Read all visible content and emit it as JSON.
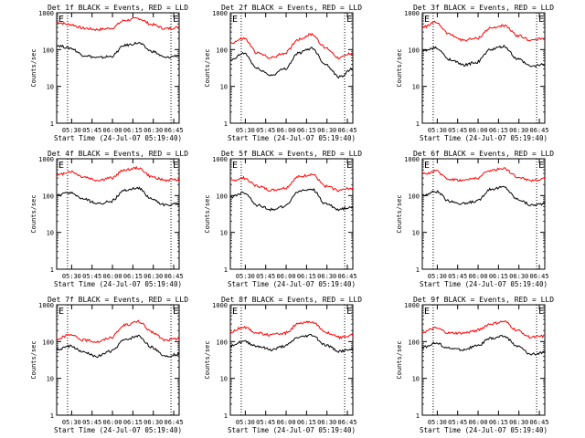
{
  "figure": {
    "ylabel": "Counts/sec",
    "xlabel": "Start Time (24-Jul-07 05:19:40)",
    "xticks": [
      "05:30",
      "05:45",
      "06:00",
      "06:15",
      "06:30",
      "06:45"
    ],
    "yticks": [
      "1",
      "10",
      "100",
      "1000"
    ],
    "marker_left": "E",
    "marker_right": "E",
    "colors": {
      "events": "#000000",
      "lld": "#ff0000",
      "axes": "#000000"
    }
  },
  "chart_data": [
    {
      "type": "line",
      "title": "Det 1f BLACK = Events, RED = LLD",
      "x_minutes": [
        0,
        10,
        20,
        30,
        40,
        50,
        60,
        70,
        80,
        90
      ],
      "series": [
        {
          "name": "LLD",
          "values": [
            550,
            480,
            380,
            350,
            380,
            620,
            700,
            480,
            370,
            400
          ]
        },
        {
          "name": "Events",
          "values": [
            130,
            110,
            70,
            60,
            65,
            130,
            150,
            90,
            60,
            70
          ]
        }
      ],
      "ylim": [
        1,
        1000
      ],
      "yscale": "log",
      "markers_minutes": [
        8,
        84
      ]
    },
    {
      "type": "line",
      "title": "Det 2f BLACK = Events, RED = LLD",
      "x_minutes": [
        0,
        10,
        20,
        30,
        40,
        50,
        60,
        70,
        80,
        90
      ],
      "series": [
        {
          "name": "LLD",
          "values": [
            150,
            200,
            80,
            60,
            80,
            190,
            260,
            110,
            60,
            80
          ]
        },
        {
          "name": "Events",
          "values": [
            50,
            80,
            30,
            20,
            30,
            80,
            110,
            40,
            18,
            30
          ]
        }
      ],
      "ylim": [
        1,
        1000
      ],
      "yscale": "log",
      "markers_minutes": [
        8,
        84
      ]
    },
    {
      "type": "line",
      "title": "Det 3f BLACK = Events, RED = LLD",
      "x_minutes": [
        0,
        10,
        20,
        30,
        40,
        50,
        60,
        70,
        80,
        90
      ],
      "series": [
        {
          "name": "LLD",
          "values": [
            400,
            550,
            260,
            180,
            200,
            380,
            450,
            240,
            180,
            200
          ]
        },
        {
          "name": "Events",
          "values": [
            90,
            110,
            55,
            38,
            45,
            100,
            120,
            55,
            35,
            40
          ]
        }
      ],
      "ylim": [
        1,
        1000
      ],
      "yscale": "log",
      "markers_minutes": [
        8,
        84
      ]
    },
    {
      "type": "line",
      "title": "Det 4f BLACK = Events, RED = LLD",
      "x_minutes": [
        0,
        10,
        20,
        30,
        40,
        50,
        60,
        70,
        80,
        90
      ],
      "series": [
        {
          "name": "LLD",
          "values": [
            350,
            450,
            320,
            260,
            300,
            500,
            560,
            320,
            260,
            280
          ]
        },
        {
          "name": "Events",
          "values": [
            100,
            120,
            80,
            60,
            70,
            140,
            160,
            80,
            55,
            60
          ]
        }
      ],
      "ylim": [
        1,
        1000
      ],
      "yscale": "log",
      "markers_minutes": [
        8,
        84
      ]
    },
    {
      "type": "line",
      "title": "Det 5f BLACK = Events, RED = LLD",
      "x_minutes": [
        0,
        10,
        20,
        30,
        40,
        50,
        60,
        70,
        80,
        90
      ],
      "series": [
        {
          "name": "LLD",
          "values": [
            250,
            300,
            180,
            140,
            160,
            320,
            380,
            180,
            140,
            160
          ]
        },
        {
          "name": "Events",
          "values": [
            90,
            120,
            55,
            42,
            50,
            130,
            150,
            60,
            42,
            50
          ]
        }
      ],
      "ylim": [
        1,
        1000
      ],
      "yscale": "log",
      "markers_minutes": [
        8,
        84
      ]
    },
    {
      "type": "line",
      "title": "Det 6f BLACK = Events, RED = LLD",
      "x_minutes": [
        0,
        10,
        20,
        30,
        40,
        50,
        60,
        70,
        80,
        90
      ],
      "series": [
        {
          "name": "LLD",
          "values": [
            380,
            460,
            280,
            260,
            300,
            480,
            550,
            320,
            260,
            280
          ]
        },
        {
          "name": "Events",
          "values": [
            100,
            130,
            70,
            60,
            70,
            150,
            170,
            80,
            55,
            60
          ]
        }
      ],
      "ylim": [
        1,
        1000
      ],
      "yscale": "log",
      "markers_minutes": [
        8,
        84
      ]
    },
    {
      "type": "line",
      "title": "Det 7f BLACK = Events, RED = LLD",
      "x_minutes": [
        0,
        10,
        20,
        30,
        40,
        50,
        60,
        70,
        80,
        90
      ],
      "series": [
        {
          "name": "LLD",
          "values": [
            120,
            150,
            110,
            100,
            130,
            280,
            350,
            180,
            110,
            120
          ]
        },
        {
          "name": "Events",
          "values": [
            60,
            75,
            50,
            40,
            55,
            110,
            140,
            70,
            40,
            45
          ]
        }
      ],
      "ylim": [
        1,
        1000
      ],
      "yscale": "log",
      "markers_minutes": [
        8,
        84
      ]
    },
    {
      "type": "line",
      "title": "Det 8f BLACK = Events, RED = LLD",
      "x_minutes": [
        0,
        10,
        20,
        30,
        40,
        50,
        60,
        70,
        80,
        90
      ],
      "series": [
        {
          "name": "LLD",
          "values": [
            180,
            250,
            170,
            150,
            170,
            300,
            350,
            180,
            130,
            150
          ]
        },
        {
          "name": "Events",
          "values": [
            80,
            100,
            75,
            60,
            75,
            130,
            150,
            80,
            55,
            60
          ]
        }
      ],
      "ylim": [
        1,
        1000
      ],
      "yscale": "log",
      "markers_minutes": [
        8,
        84
      ]
    },
    {
      "type": "line",
      "title": "Det 9f BLACK = Events, RED = LLD",
      "x_minutes": [
        0,
        10,
        20,
        30,
        40,
        50,
        60,
        70,
        80,
        90
      ],
      "series": [
        {
          "name": "LLD",
          "values": [
            180,
            230,
            170,
            170,
            200,
            300,
            350,
            200,
            130,
            140
          ]
        },
        {
          "name": "Events",
          "values": [
            70,
            90,
            65,
            60,
            75,
            120,
            140,
            75,
            45,
            50
          ]
        }
      ],
      "ylim": [
        1,
        1000
      ],
      "yscale": "log",
      "markers_minutes": [
        8,
        84
      ]
    }
  ]
}
